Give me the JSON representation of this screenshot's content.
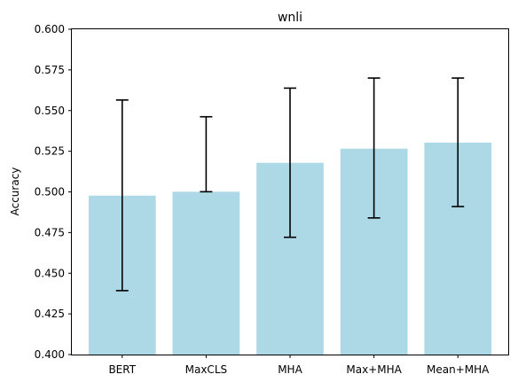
{
  "chart_data": {
    "type": "bar",
    "title": "wnli",
    "xlabel": "",
    "ylabel": "Accuracy",
    "categories": [
      "BERT",
      "MaxCLS",
      "MHA",
      "Max+MHA",
      "Mean+MHA"
    ],
    "values": [
      0.4977,
      0.5001,
      0.5179,
      0.5266,
      0.5303
    ],
    "error_bars": [
      {
        "low": 0.4393,
        "high": 0.5565
      },
      {
        "low": 0.5001,
        "high": 0.5462
      },
      {
        "low": 0.4721,
        "high": 0.5638
      },
      {
        "low": 0.484,
        "high": 0.57
      },
      {
        "low": 0.491,
        "high": 0.57
      }
    ],
    "ylim": [
      0.4,
      0.6
    ],
    "yticks": [
      "0.400",
      "0.425",
      "0.450",
      "0.475",
      "0.500",
      "0.525",
      "0.550",
      "0.575",
      "0.600"
    ],
    "bar_color": "#add8e6",
    "error_color": "#000000",
    "grid": false,
    "legend": false
  }
}
